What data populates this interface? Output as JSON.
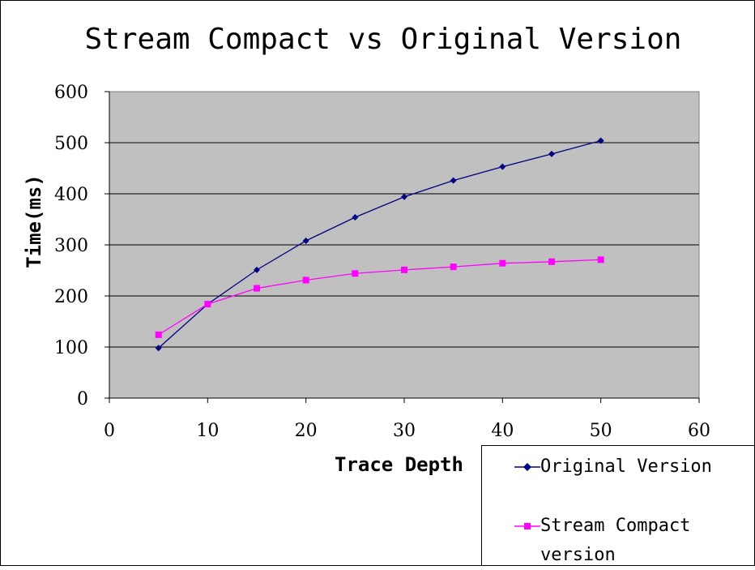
{
  "chart_data": {
    "type": "line",
    "title": "Stream Compact vs Original Version",
    "xlabel": "Trace Depth",
    "ylabel": "Time(ms)",
    "xlim": [
      0,
      60
    ],
    "ylim": [
      0,
      600
    ],
    "xticks": [
      0,
      10,
      20,
      30,
      40,
      50,
      60
    ],
    "yticks": [
      0,
      100,
      200,
      300,
      400,
      500,
      600
    ],
    "grid": "horizontal",
    "plot_background": "#c0c0c0",
    "legend_position": "bottom-right",
    "x": [
      5,
      10,
      15,
      20,
      25,
      30,
      35,
      40,
      45,
      50
    ],
    "series": [
      {
        "name": "Original Version",
        "color": "#000080",
        "marker": "diamond",
        "values": [
          98,
          184,
          251,
          308,
          354,
          394,
          426,
          453,
          478,
          504
        ]
      },
      {
        "name": "Stream Compact version",
        "color": "#ff00ff",
        "marker": "square",
        "values": [
          124,
          184,
          215,
          231,
          244,
          251,
          257,
          264,
          267,
          271
        ]
      }
    ]
  }
}
